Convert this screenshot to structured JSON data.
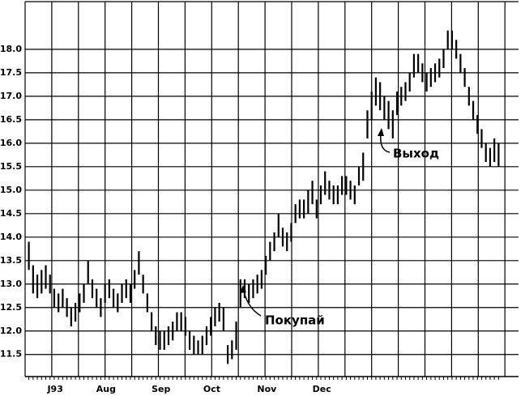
{
  "chart_data": {
    "type": "hilo",
    "categories": [
      null,
      null,
      null,
      null,
      null,
      null,
      null,
      "J93",
      null,
      null,
      null,
      null,
      null,
      null,
      null,
      null,
      null,
      null,
      null,
      "Aug",
      null,
      null,
      null,
      null,
      null,
      null,
      null,
      null,
      null,
      null,
      null,
      null,
      "Sep",
      null,
      null,
      null,
      null,
      null,
      null,
      null,
      null,
      null,
      null,
      null,
      "Oct",
      null,
      null,
      null,
      null,
      null,
      null,
      null,
      null,
      null,
      null,
      null,
      null,
      "Nov",
      null,
      null,
      null,
      null,
      null,
      null,
      null,
      null,
      null,
      null,
      null,
      null,
      "Dec",
      null,
      null,
      null,
      null,
      null,
      null,
      null,
      null,
      null,
      null,
      null,
      null,
      null,
      null,
      null,
      null,
      null,
      null,
      null,
      null,
      null,
      null,
      null,
      null,
      null,
      null,
      null,
      null,
      null,
      null,
      null,
      null,
      null,
      null,
      null,
      null,
      null,
      null,
      null,
      null,
      null
    ],
    "high": [
      13.9,
      13.4,
      13.2,
      13.3,
      13.4,
      13.2,
      12.9,
      12.8,
      12.9,
      12.7,
      12.5,
      12.6,
      12.8,
      13.0,
      13.5,
      13.1,
      12.9,
      12.7,
      13.0,
      13.1,
      12.9,
      12.8,
      13.0,
      13.1,
      13.0,
      13.3,
      13.7,
      13.2,
      12.8,
      12.4,
      12.1,
      12.0,
      12.0,
      12.1,
      12.2,
      12.4,
      12.4,
      12.3,
      12.0,
      11.9,
      11.8,
      11.9,
      12.1,
      12.3,
      12.5,
      12.6,
      12.5,
      11.7,
      11.8,
      12.2,
      13.1,
      13.1,
      13.0,
      13.1,
      13.2,
      13.3,
      13.6,
      13.9,
      14.1,
      14.5,
      14.2,
      14.1,
      14.3,
      14.7,
      14.8,
      14.8,
      15.0,
      15.2,
      14.8,
      15.1,
      15.4,
      15.2,
      15.1,
      15.1,
      15.3,
      15.3,
      15.2,
      15.1,
      15.5,
      15.8,
      16.7,
      17.1,
      17.4,
      17.3,
      17.0,
      16.9,
      16.7,
      17.1,
      17.2,
      17.3,
      17.5,
      17.9,
      17.9,
      17.7,
      17.5,
      17.6,
      17.7,
      17.8,
      18.0,
      18.4,
      18.4,
      18.2,
      17.9,
      17.6,
      17.2,
      16.9,
      16.6,
      16.3,
      16.0,
      15.9,
      16.1,
      16.0
    ],
    "low": [
      13.3,
      12.8,
      12.7,
      12.8,
      12.9,
      12.8,
      12.5,
      12.4,
      12.5,
      12.3,
      12.1,
      12.2,
      12.4,
      12.6,
      13.0,
      12.7,
      12.5,
      12.3,
      12.6,
      12.7,
      12.5,
      12.4,
      12.6,
      12.7,
      12.6,
      12.9,
      13.2,
      12.8,
      12.4,
      12.0,
      11.7,
      11.6,
      11.6,
      11.7,
      11.8,
      12.0,
      12.0,
      11.9,
      11.6,
      11.5,
      11.5,
      11.5,
      11.7,
      11.9,
      12.1,
      12.2,
      12.0,
      11.3,
      11.4,
      11.6,
      12.5,
      12.7,
      12.6,
      12.7,
      12.8,
      12.9,
      13.2,
      13.5,
      13.7,
      14.0,
      13.8,
      13.7,
      13.9,
      14.3,
      14.4,
      14.4,
      14.5,
      14.7,
      14.4,
      14.7,
      14.9,
      14.8,
      14.7,
      14.7,
      14.9,
      14.9,
      14.8,
      14.7,
      15.1,
      15.2,
      16.1,
      16.5,
      16.8,
      16.7,
      16.5,
      16.3,
      16.1,
      16.6,
      16.8,
      16.9,
      17.1,
      17.4,
      17.5,
      17.3,
      17.1,
      17.2,
      17.3,
      17.4,
      17.6,
      18.0,
      18.0,
      17.8,
      17.5,
      17.2,
      16.8,
      16.5,
      16.2,
      15.9,
      15.6,
      15.5,
      15.6,
      15.5
    ],
    "color": "#000000",
    "ylim": [
      11.03,
      19.05
    ],
    "yticks": [
      11.5,
      {
        "value": 12,
        "label": "12.0"
      },
      12.5,
      {
        "value": 13,
        "label": "13.0"
      },
      13.5,
      {
        "value": 14,
        "label": "14.0"
      },
      14.5,
      {
        "value": 15,
        "label": "15.0"
      },
      15.5,
      {
        "value": 16,
        "label": "16.0"
      },
      16.5,
      {
        "value": 17,
        "label": "17.0"
      },
      17.5,
      {
        "value": 18,
        "label": "18.0"
      }
    ],
    "grid": true,
    "annotations": [
      {
        "text": "Покупай"
      },
      {
        "text": "Выход"
      }
    ]
  }
}
